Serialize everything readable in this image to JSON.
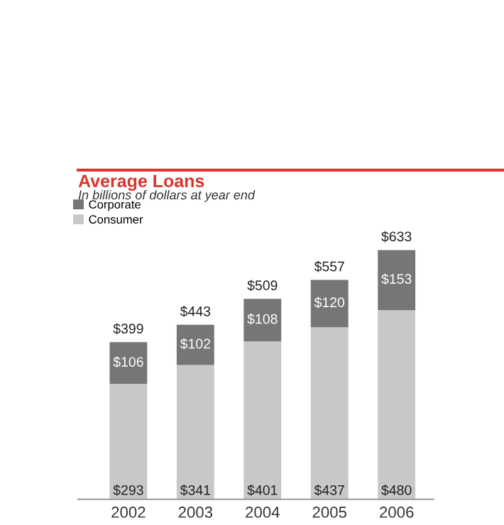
{
  "chart_data": {
    "type": "bar",
    "title": "Average Loans",
    "subtitle": "In billions of dollars at year end",
    "categories": [
      "2002",
      "2003",
      "2004",
      "2005",
      "2006"
    ],
    "stacked": true,
    "legend": "top left",
    "grid": false,
    "tick_labels": "x",
    "series": [
      {
        "name": "Consumer",
        "color": "#c8c8c8",
        "values": [
          293,
          341,
          401,
          437,
          480
        ],
        "value_labels": [
          "$293",
          "$341",
          "$401",
          "$437",
          "$480"
        ]
      },
      {
        "name": "Corporate",
        "color": "#767676",
        "values": [
          106,
          102,
          108,
          120,
          153
        ],
        "value_labels": [
          "$106",
          "$102",
          "$108",
          "$120",
          "$153"
        ]
      }
    ],
    "totals": [
      "$399",
      "$443",
      "$509",
      "$557",
      "$633"
    ]
  }
}
